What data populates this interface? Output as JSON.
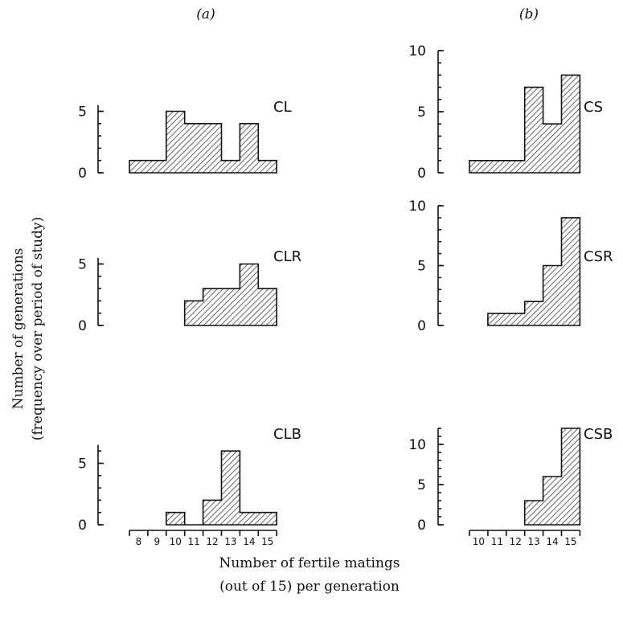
{
  "panel_labels": {
    "a": "(a)",
    "b": "(b)"
  },
  "ylabel_line1": "Number of generations",
  "ylabel_line2": "(frequency over period of study)",
  "xlabel_line1": "Number of fertile matings",
  "xlabel_line2": "(out of 15) per generation",
  "chart_data": [
    {
      "type": "bar",
      "title": "CL",
      "panel": "(a)",
      "categories": [
        8,
        9,
        10,
        11,
        12,
        13,
        14,
        15
      ],
      "values": [
        1,
        1,
        5,
        4,
        4,
        1,
        4,
        1
      ],
      "yticks": [
        "0",
        "5"
      ],
      "ylim": [
        0,
        5.5
      ]
    },
    {
      "type": "bar",
      "title": "CLR",
      "panel": "(a)",
      "categories": [
        11,
        12,
        13,
        14,
        15
      ],
      "values": [
        2,
        3,
        3,
        5,
        3
      ],
      "yticks": [
        "0",
        "5"
      ],
      "ylim": [
        0,
        5.5
      ]
    },
    {
      "type": "bar",
      "title": "CLB",
      "panel": "(a)",
      "categories": [
        10,
        11,
        12,
        13,
        14,
        15
      ],
      "values": [
        1,
        0,
        2,
        6,
        1,
        1
      ],
      "yticks": [
        "0",
        "5"
      ],
      "ylim": [
        0,
        6.5
      ]
    },
    {
      "type": "bar",
      "title": "CS",
      "panel": "(b)",
      "categories": [
        10,
        11,
        12,
        13,
        14,
        15
      ],
      "values": [
        1,
        1,
        1,
        7,
        4,
        8
      ],
      "yticks": [
        "0",
        "5",
        "10"
      ],
      "ylim": [
        0,
        10
      ]
    },
    {
      "type": "bar",
      "title": "CSR",
      "panel": "(b)",
      "categories": [
        11,
        12,
        13,
        14,
        15
      ],
      "values": [
        1,
        1,
        2,
        5,
        9
      ],
      "yticks": [
        "0",
        "5",
        "10"
      ],
      "ylim": [
        0,
        10
      ]
    },
    {
      "type": "bar",
      "title": "CSB",
      "panel": "(b)",
      "categories": [
        13,
        14,
        15
      ],
      "values": [
        3,
        6,
        12
      ],
      "yticks": [
        "0",
        "5",
        "10"
      ],
      "ylim": [
        0,
        12
      ]
    }
  ],
  "x_axes": [
    {
      "panel": "(a)",
      "ticks": [
        "8",
        "9",
        "10",
        "11",
        "12",
        "13",
        "14",
        "15"
      ]
    },
    {
      "panel": "(b)",
      "ticks": [
        "10",
        "11",
        "12",
        "13",
        "14",
        "15"
      ]
    }
  ]
}
